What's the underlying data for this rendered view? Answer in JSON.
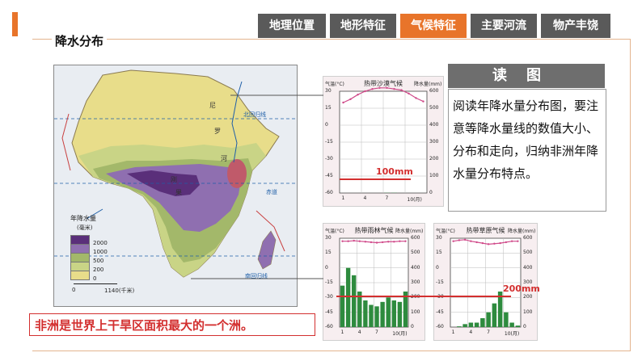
{
  "tabs": [
    {
      "label": "地理位置",
      "active": false
    },
    {
      "label": "地形特征",
      "active": false
    },
    {
      "label": "气候特征",
      "active": true
    },
    {
      "label": "主要河流",
      "active": false
    },
    {
      "label": "物产丰饶",
      "active": false
    }
  ],
  "section": {
    "title": "降水分布"
  },
  "map": {
    "legend_title": "年降水量",
    "legend_unit": "(毫米)",
    "legend_levels": [
      {
        "label": "2000",
        "color": "#5a2f7a"
      },
      {
        "label": "1000",
        "color": "#8f6fb0"
      },
      {
        "label": "500",
        "color": "#a3b86a"
      },
      {
        "label": "200",
        "color": "#c9d486"
      },
      {
        "label": "0",
        "color": "#e8dd8a"
      }
    ],
    "scale_start": "0",
    "scale_end": "1140(千米)",
    "labels": {
      "tropic_north": "北回归线",
      "equator": "赤道",
      "tropic_south": "南回归线",
      "nile_1": "尼",
      "nile_2": "罗",
      "nile_3": "河",
      "congo_1": "刚",
      "congo_2": "果"
    }
  },
  "charts": [
    {
      "title": "热带沙漠气候",
      "left_unit": "气温(°C)",
      "right_unit": "降水量(mm)",
      "temp_ticks": [
        "30",
        "15",
        "0",
        "-15",
        "-30",
        "-45",
        "-60"
      ],
      "precip_ticks": [
        "600",
        "500",
        "400",
        "300",
        "200",
        "100",
        "0"
      ],
      "months": [
        "1",
        "4",
        "7",
        "10(月)"
      ],
      "temps": [
        20,
        23,
        27,
        30,
        32,
        33,
        33,
        32,
        31,
        28,
        24,
        21
      ],
      "precip": [
        0,
        0,
        0,
        0,
        0,
        0,
        1,
        1,
        0,
        0,
        0,
        0
      ],
      "temp_color": "#d04a8a",
      "bar_color": "#2e8b3e"
    },
    {
      "title": "热带雨林气候",
      "left_unit": "气温(°C)",
      "right_unit": "降水量(mm)",
      "temp_ticks": [
        "30",
        "15",
        "0",
        "-15",
        "-30",
        "-45",
        "-60"
      ],
      "precip_ticks": [
        "600",
        "500",
        "400",
        "300",
        "200",
        "100",
        "0"
      ],
      "months": [
        "1",
        "4",
        "7",
        "10(月)"
      ],
      "temps": [
        27,
        27,
        27.5,
        27,
        26.5,
        26,
        25.5,
        26,
        26.5,
        26.5,
        27,
        27
      ],
      "precip": [
        280,
        400,
        350,
        240,
        180,
        150,
        140,
        170,
        200,
        180,
        170,
        240
      ],
      "temp_color": "#d04a8a",
      "bar_color": "#2e8b3e"
    },
    {
      "title": "热带草原气候",
      "left_unit": "气温(°C)",
      "right_unit": "降水量(mm)",
      "temp_ticks": [
        "30",
        "15",
        "0",
        "-15",
        "-30",
        "-45",
        "-60"
      ],
      "precip_ticks": [
        "600",
        "500",
        "400",
        "300",
        "200",
        "100",
        "0"
      ],
      "months": [
        "1",
        "4",
        "7",
        "10(月)"
      ],
      "temps": [
        27,
        28,
        28.5,
        27,
        26,
        25,
        24,
        24.5,
        25,
        26,
        27,
        27
      ],
      "precip": [
        0,
        5,
        20,
        30,
        30,
        60,
        100,
        160,
        240,
        100,
        30,
        10
      ],
      "temp_color": "#d04a8a",
      "bar_color": "#2e8b3e"
    }
  ],
  "marks": {
    "desert": "100mm",
    "rainforest": "200mm"
  },
  "read": {
    "header": "读图",
    "text": "阅读年降水量分布图，要注意等降水量线的数值大小、分布和走向，归纳非洲年降水量分布特点。"
  },
  "conclusion": "非洲是世界上干旱区面积最大的一个洲。"
}
